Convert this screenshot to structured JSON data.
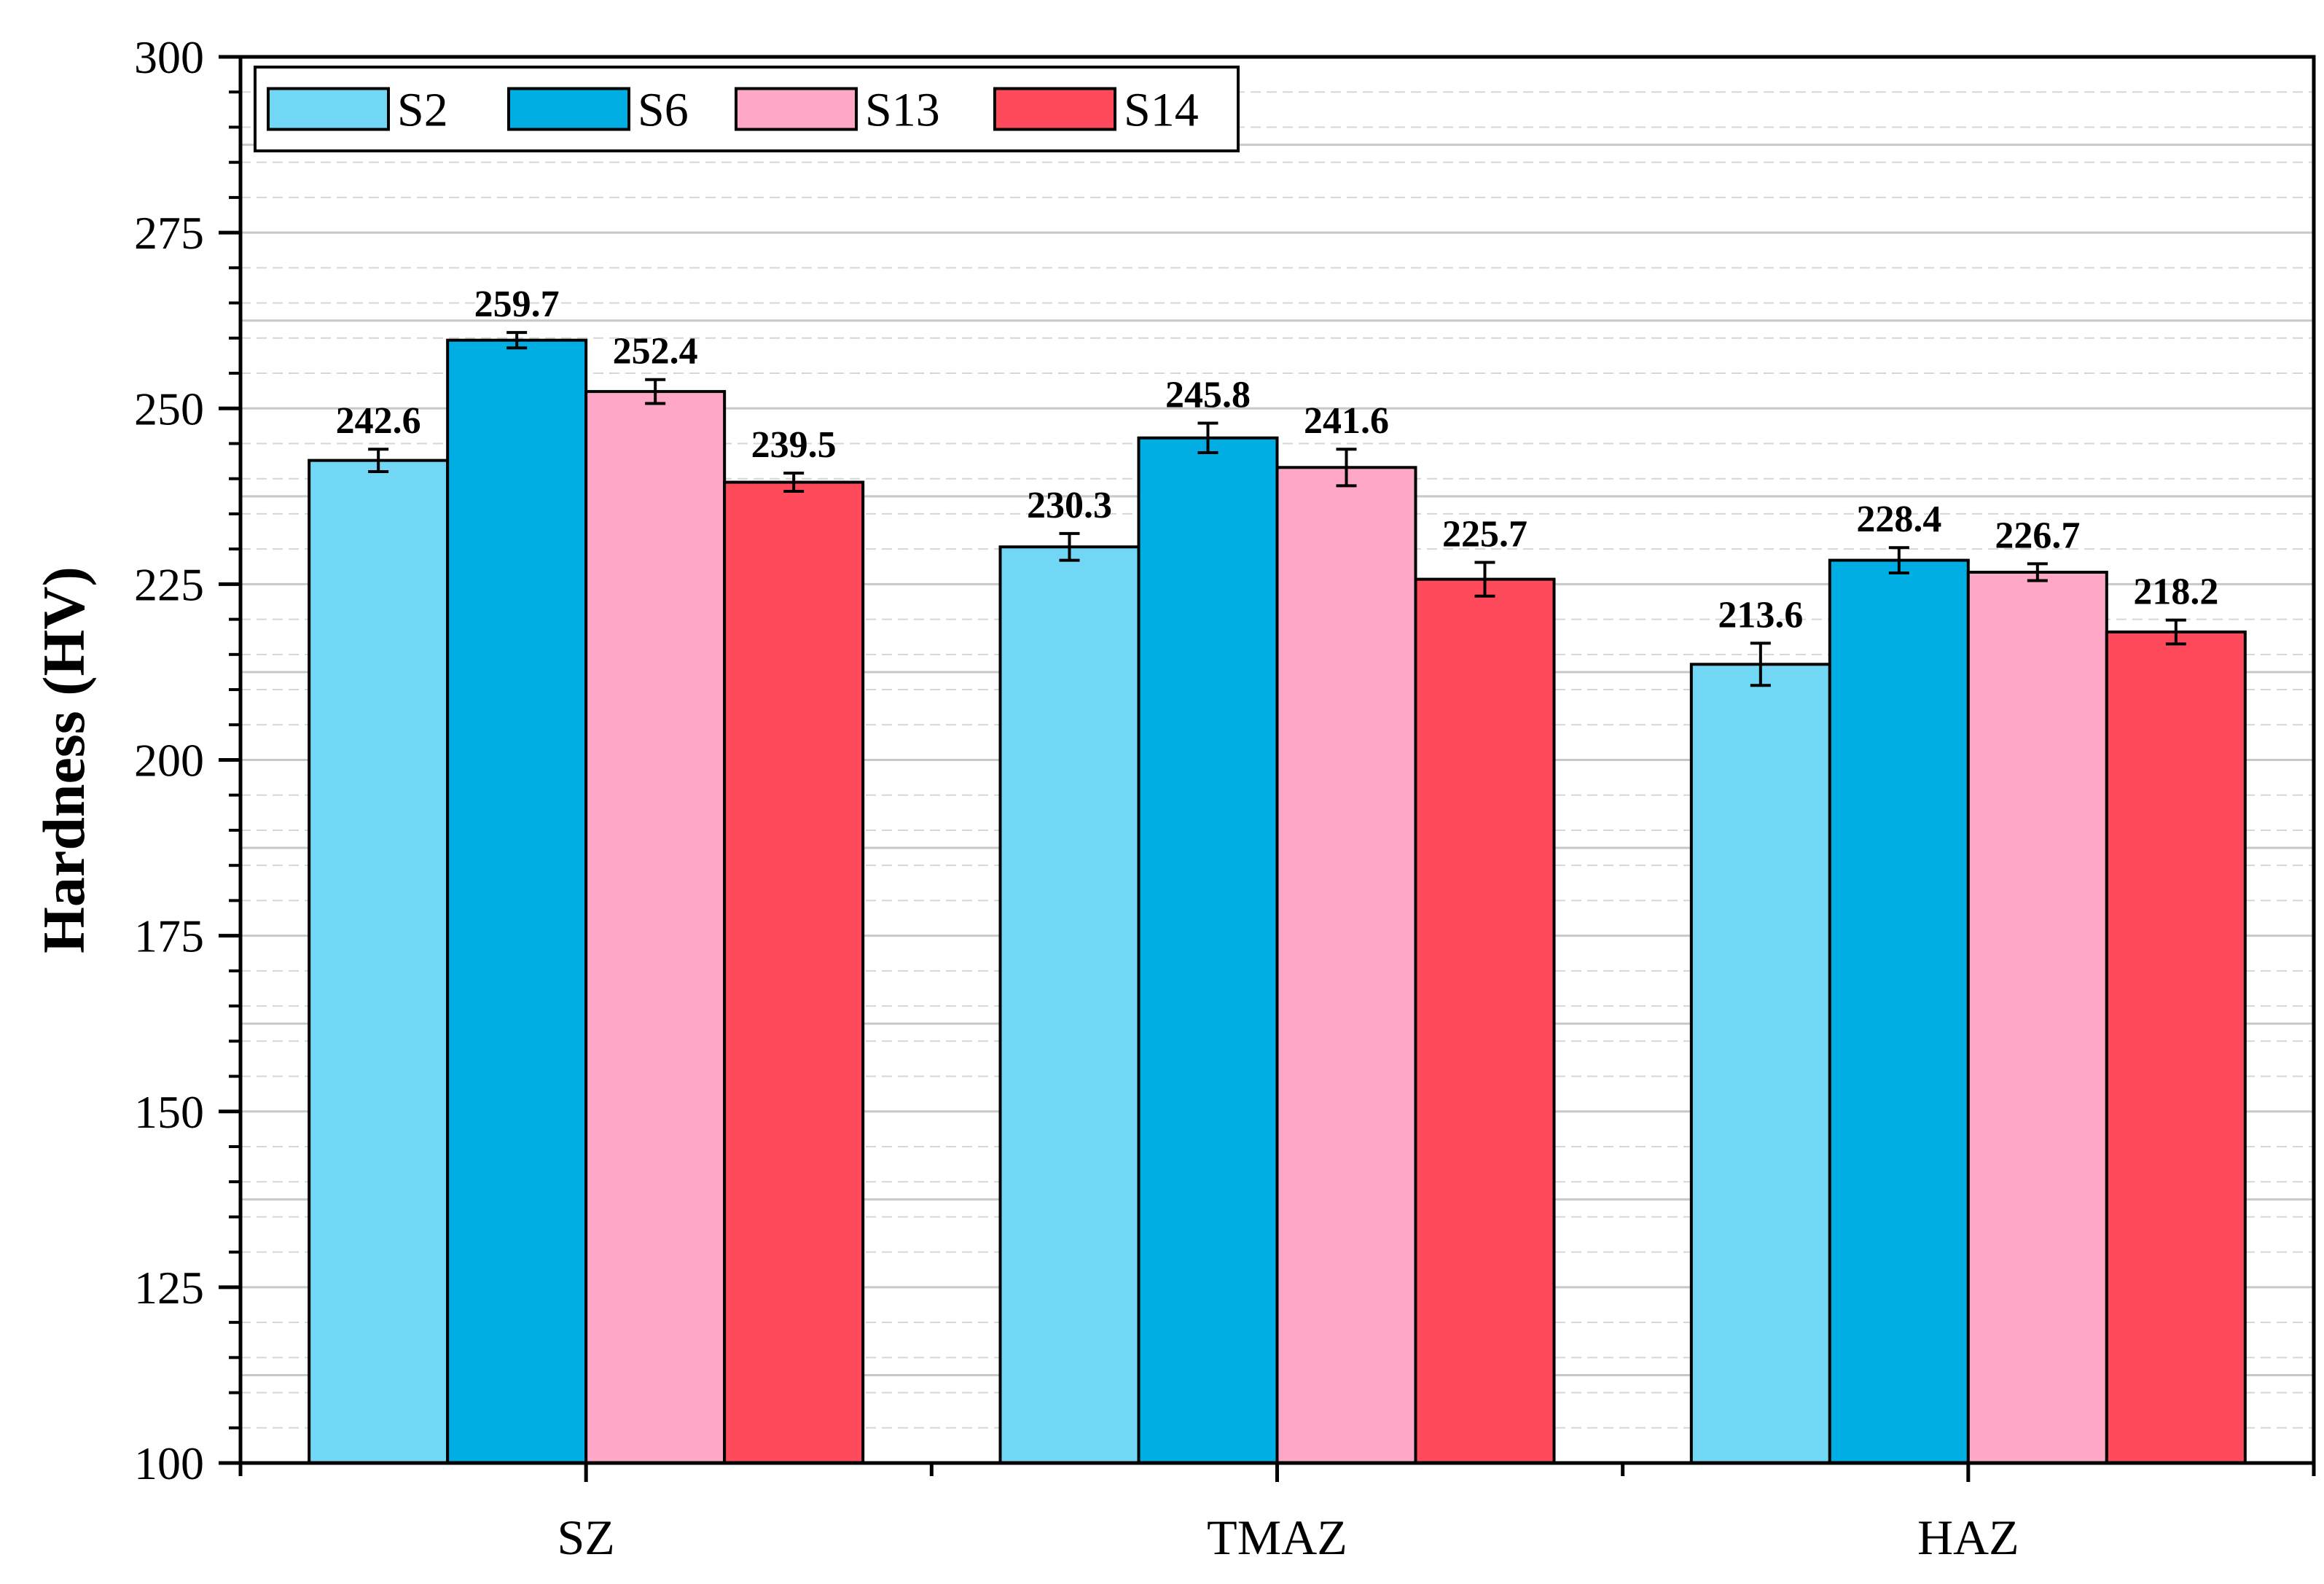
{
  "chart_data": {
    "type": "bar",
    "title": "",
    "xlabel": "",
    "ylabel": "Hardness (HV)",
    "ylim": [
      100,
      300
    ],
    "yticks": [
      "100",
      "125",
      "150",
      "175",
      "200",
      "225",
      "250",
      "275",
      "300"
    ],
    "categories": [
      "SZ",
      "TMAZ",
      "HAZ"
    ],
    "grid": true,
    "legend_position": "top-left",
    "series": [
      {
        "name": "S2",
        "color": "#72D6F5",
        "values": [
          242.6,
          230.3,
          213.6
        ],
        "labels": [
          "242.6",
          "230.3",
          "213.6"
        ],
        "errors": [
          1.6,
          1.9,
          3.0
        ]
      },
      {
        "name": "S6",
        "color": "#00AEE3",
        "values": [
          259.7,
          245.8,
          228.4
        ],
        "labels": [
          "259.7",
          "245.8",
          "228.4"
        ],
        "errors": [
          1.1,
          2.1,
          1.8
        ]
      },
      {
        "name": "S13",
        "color": "#FFA7C6",
        "values": [
          252.4,
          241.6,
          226.7
        ],
        "labels": [
          "252.4",
          "241.6",
          "226.7"
        ],
        "errors": [
          1.7,
          2.6,
          1.2
        ]
      },
      {
        "name": "S14",
        "color": "#FF4A5C",
        "values": [
          239.5,
          225.7,
          218.2
        ],
        "labels": [
          "239.5",
          "225.7",
          "218.2"
        ],
        "errors": [
          1.3,
          2.4,
          1.7
        ]
      }
    ]
  }
}
